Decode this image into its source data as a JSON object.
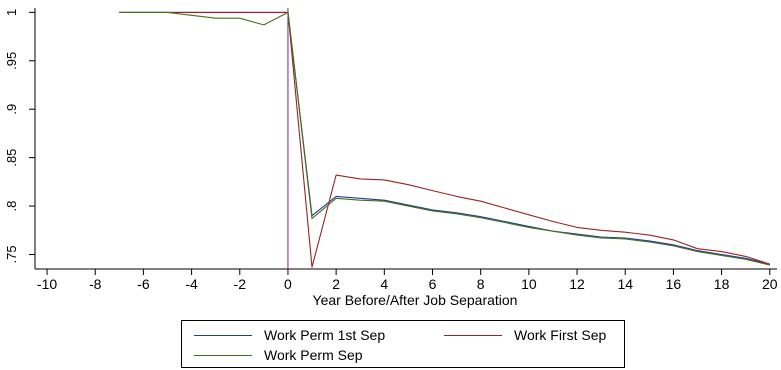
{
  "chart_data": {
    "type": "line",
    "title": "",
    "xlabel": "Year Before/After Job Separation",
    "ylabel": "",
    "xlim": [
      -10.5,
      20.3
    ],
    "ylim": [
      0.735,
      1.0045
    ],
    "xticks": [
      -10,
      -8,
      -6,
      -4,
      -2,
      0,
      2,
      4,
      6,
      8,
      10,
      12,
      14,
      16,
      18,
      20
    ],
    "xtick_labels": [
      "-10",
      "-8",
      "-6",
      "-4",
      "-2",
      "0",
      "2",
      "4",
      "6",
      "8",
      "10",
      "12",
      "14",
      "16",
      "18",
      "20"
    ],
    "yticks": [
      0.75,
      0.8,
      0.85,
      0.9,
      0.95,
      1
    ],
    "ytick_labels": [
      ".75",
      ".8",
      ".85",
      ".9",
      ".95",
      "1"
    ],
    "vline_x": 0,
    "vline_color": "#8b1c8b",
    "grid": false,
    "legend_position": "bottom",
    "x": [
      -7,
      -6,
      -5,
      -4,
      -3,
      -2,
      -1,
      0,
      1,
      2,
      3,
      4,
      5,
      6,
      7,
      8,
      9,
      10,
      11,
      12,
      13,
      14,
      15,
      16,
      17,
      18,
      19,
      20
    ],
    "series": [
      {
        "name": "Work Perm 1st Sep",
        "color": "#1f3f9c",
        "values": [
          1,
          1,
          1,
          1,
          1,
          1,
          1,
          1,
          0.79,
          0.81,
          0.808,
          0.806,
          0.801,
          0.796,
          0.793,
          0.789,
          0.784,
          0.779,
          0.774,
          0.771,
          0.768,
          0.767,
          0.764,
          0.76,
          0.754,
          0.75,
          0.746,
          0.74
        ]
      },
      {
        "name": "Work First Sep",
        "color": "#9c2323",
        "values": [
          1,
          1,
          1,
          1,
          1,
          1,
          1,
          1,
          0.737,
          0.832,
          0.828,
          0.827,
          0.822,
          0.816,
          0.81,
          0.805,
          0.798,
          0.791,
          0.784,
          0.778,
          0.775,
          0.773,
          0.77,
          0.765,
          0.756,
          0.753,
          0.748,
          0.74
        ]
      },
      {
        "name": "Work Perm Sep",
        "color": "#4a6e1a",
        "values": [
          1,
          1,
          1,
          0.997,
          0.994,
          0.994,
          0.987,
          1,
          0.787,
          0.808,
          0.806,
          0.805,
          0.8,
          0.795,
          0.792,
          0.788,
          0.783,
          0.778,
          0.774,
          0.77,
          0.767,
          0.766,
          0.763,
          0.759,
          0.753,
          0.749,
          0.745,
          0.739
        ]
      }
    ]
  }
}
